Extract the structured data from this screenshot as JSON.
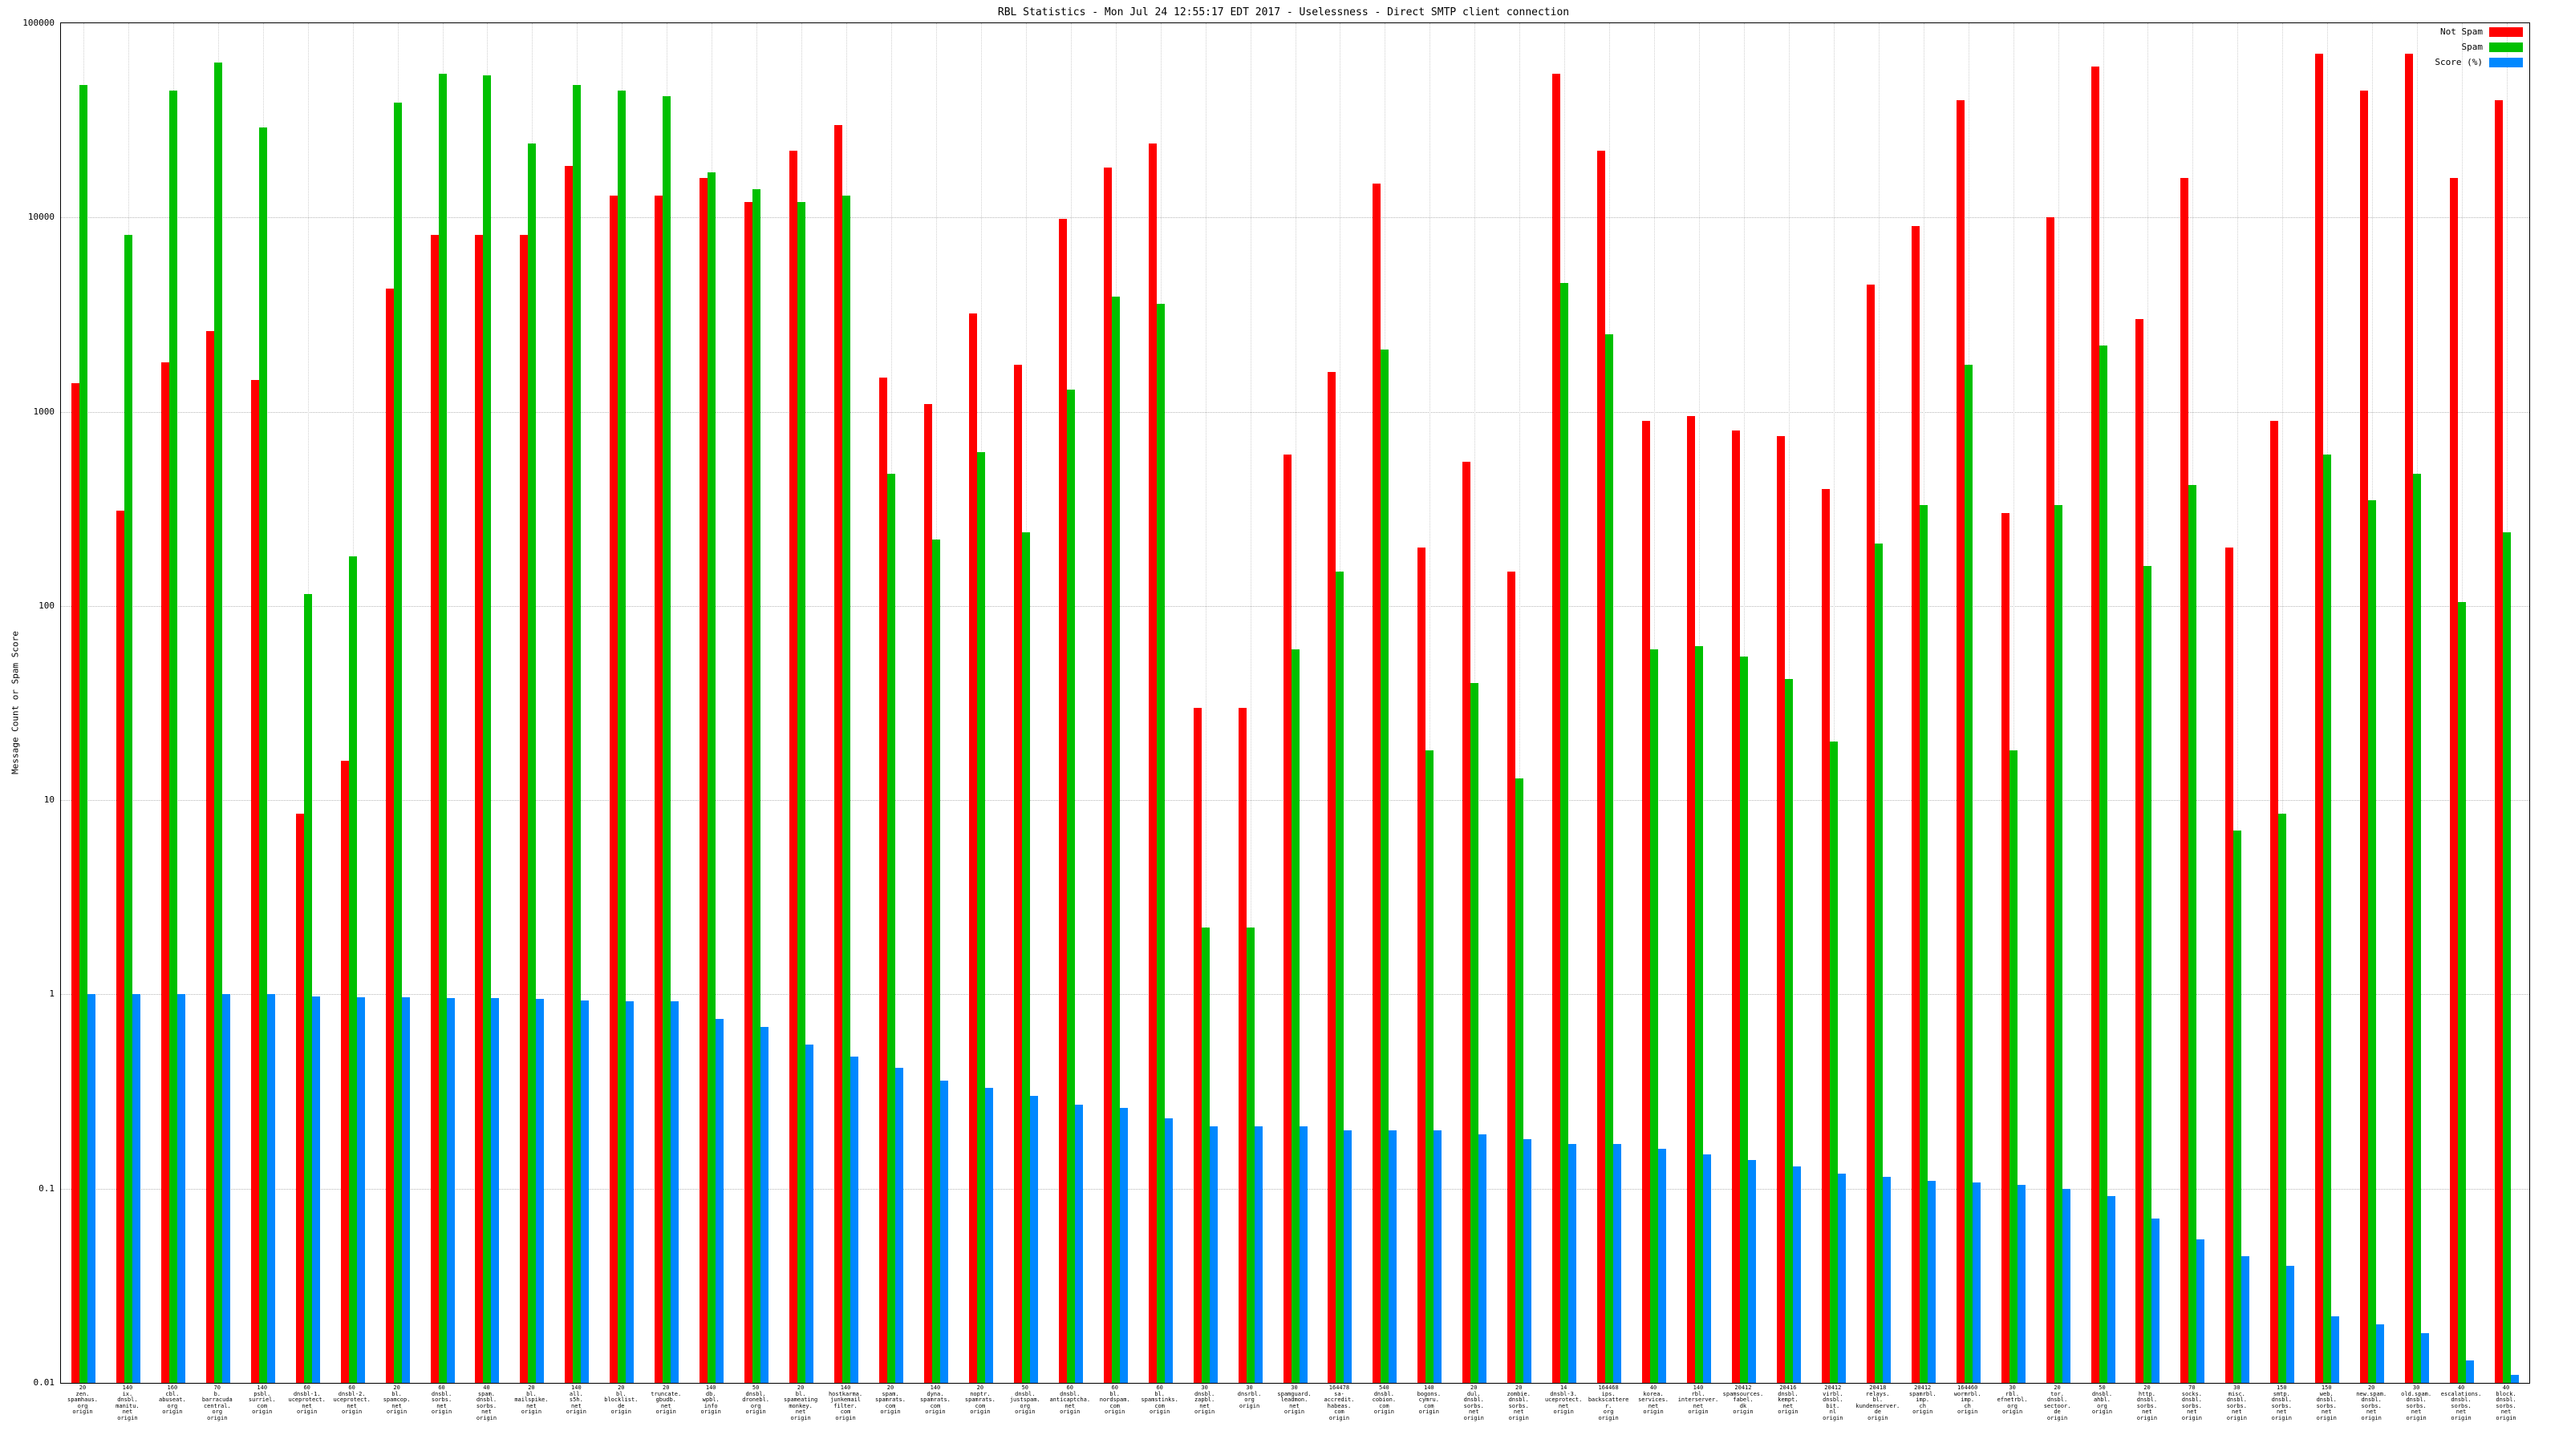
{
  "chart_data": {
    "type": "bar",
    "title": "RBL Statistics - Mon Jul 24 12:55:17 EDT 2017 - Uselessness - Direct SMTP client connection",
    "ylabel": "Message Count or Spam Score",
    "xlabel": "",
    "yscale": "log",
    "ylim": [
      0.01,
      100000
    ],
    "grid": true,
    "legend_position": "top-right",
    "ytick_labels": [
      "100000",
      "10000",
      "1000",
      "100",
      "10",
      "1",
      "0.1",
      "0.01"
    ],
    "categories": [
      "20\nzen.\nspamhaus.\norg\norigin",
      "140\nix.\ndnsbl.\nmanitu.\nnet\norigin",
      "160\ncbl.\nabuseat.\norg\norigin",
      "70\nb.\nbarracuda\ncentral.\norg\norigin",
      "140\npsbl.\nsurriel.\ncom\norigin",
      "60\ndnsbl-1.\nuceprotect.\nnet\norigin",
      "60\ndnsbl-2.\nuceprotect.\nnet\norigin",
      "20\nbl.\nspamcop.\nnet\norigin",
      "60\ndnsbl.\nsorbs.\nnet\norigin",
      "40\nspam.\ndnsbl.\nsorbs.\nnet\norigin",
      "20\nbl.\nmailspike.\nnet\norigin",
      "140\nall.\ns5h.\nnet\norigin",
      "20\nbl.\nblocklist.\nde\norigin",
      "20\ntruncate.\ngbudb.\nnet\norigin",
      "140\ndb.\nwpbl.\ninfo\norigin",
      "50\ndnsbl.\ndronebl.\norg\norigin",
      "20\nbl.\nspameating\nmonkey.\nnet\norigin",
      "140\nhostkarma.\njunkemail\nfilter.\ncom\norigin",
      "20\nspam.\nspamrats.\ncom\norigin",
      "140\ndyna.\nspamrats.\ncom\norigin",
      "20\nnoptr.\nspamrats.\ncom\norigin",
      "50\ndnsbl.\njustspam.\norg\norigin",
      "60\ndnsbl.\nanticaptcha.\nnet\norigin",
      "60\nbl.\nnordspam.\ncom\norigin",
      "60\nbl.\nspamstinks.\ncom\norigin",
      "30\ndnsbl.\nzapbl.\nnet\norigin",
      "30\ndnsrbl.\norg\norigin",
      "30\nspamguard.\nleadmon.\nnet\norigin",
      "164478\nsa-\naccredit.\nhabeas.\ncom\norigin",
      "540\ndnsbl.\ncobion.\ncom\norigin",
      "140\nbogons.\ncymru.\ncom\norigin",
      "20\ndul.\ndnsbl.\nsorbs.\nnet\norigin",
      "20\nzombie.\ndnsbl.\nsorbs.\nnet\norigin",
      "14\ndnsbl-3.\nuceprotect.\nnet\norigin",
      "164468\nips.\nbackscatterer.\norg\norigin",
      "40\nkorea.\nservices.\nnet\norigin",
      "140\nrbl.\ninterserver.\nnet\norigin",
      "20412\nspamsources.\nfabel.\ndk\norigin",
      "20416\ndnsbl.\nkempt.\nnet\norigin",
      "20412\nvirbl.\ndnsbl.\nbit.\nnl\norigin",
      "20418\nrelays.\nbl.\nkundenserver.\nde\norigin",
      "20412\nspamrbl.\nimp.\nch\norigin",
      "164460\nwormrbl.\nimp.\nch\norigin",
      "30\nrbl.\nefnetrbl.\norg\norigin",
      "20\ntor.\ndnsbl.\nsectoor.\nde\norigin",
      "50\ndnsbl.\nahbl.\norg\norigin",
      "20\nhttp.\ndnsbl.\nsorbs.\nnet\norigin",
      "70\nsocks.\ndnsbl.\nsorbs.\nnet\norigin",
      "30\nmisc.\ndnsbl.\nsorbs.\nnet\norigin",
      "150\nsmtp.\ndnsbl.\nsorbs.\nnet\norigin",
      "150\nweb.\ndnsbl.\nsorbs.\nnet\norigin",
      "20\nnew.spam.\ndnsbl.\nsorbs.\nnet\norigin",
      "30\nold.spam.\ndnsbl.\nsorbs.\nnet\norigin",
      "40\nescalations.\ndnsbl.\nsorbs.\nnet\norigin",
      "40\nblock.\ndnsbl.\nsorbs.\nnet\norigin"
    ],
    "series": [
      {
        "name": "Not Spam",
        "color": "#ff0000",
        "values": [
          1400,
          310,
          1800,
          2600,
          1450,
          8.5,
          16,
          4300,
          8100,
          8100,
          8100,
          18500,
          13000,
          13000,
          16000,
          12000,
          22000,
          30000,
          1500,
          1100,
          3200,
          1750,
          9800,
          18000,
          24000,
          30,
          30,
          600,
          1600,
          15000,
          200,
          550,
          150,
          55000,
          22000,
          900,
          950,
          800,
          750,
          400,
          4500,
          9000,
          40000,
          300,
          10000,
          60000,
          3000,
          16000,
          200,
          900,
          70000,
          45000,
          70000,
          16000,
          40000
        ]
      },
      {
        "name": "Spam",
        "color": "#00c000",
        "values": [
          48000,
          8100,
          45000,
          63000,
          29000,
          115,
          180,
          39000,
          55000,
          54000,
          24000,
          48000,
          45000,
          42000,
          17000,
          14000,
          12000,
          13000,
          480,
          220,
          620,
          240,
          1300,
          3900,
          3600,
          2.2,
          2.2,
          60,
          150,
          2100,
          18,
          40,
          13,
          4600,
          2500,
          60,
          62,
          55,
          42,
          20,
          210,
          330,
          1750,
          18,
          330,
          2200,
          160,
          420,
          7,
          8.5,
          600,
          350,
          480,
          105,
          240
        ]
      },
      {
        "name": "Score (%)",
        "color": "#0088ff",
        "values": [
          1.0,
          1.0,
          1.0,
          1.0,
          1.0,
          0.98,
          0.97,
          0.97,
          0.96,
          0.96,
          0.95,
          0.93,
          0.92,
          0.92,
          0.75,
          0.68,
          0.55,
          0.48,
          0.42,
          0.36,
          0.33,
          0.3,
          0.27,
          0.26,
          0.23,
          0.21,
          0.21,
          0.21,
          0.2,
          0.2,
          0.2,
          0.19,
          0.18,
          0.17,
          0.17,
          0.16,
          0.15,
          0.14,
          0.13,
          0.12,
          0.115,
          0.11,
          0.108,
          0.105,
          0.1,
          0.092,
          0.07,
          0.055,
          0.045,
          0.04,
          0.022,
          0.02,
          0.018,
          0.013,
          0.011
        ]
      }
    ]
  }
}
